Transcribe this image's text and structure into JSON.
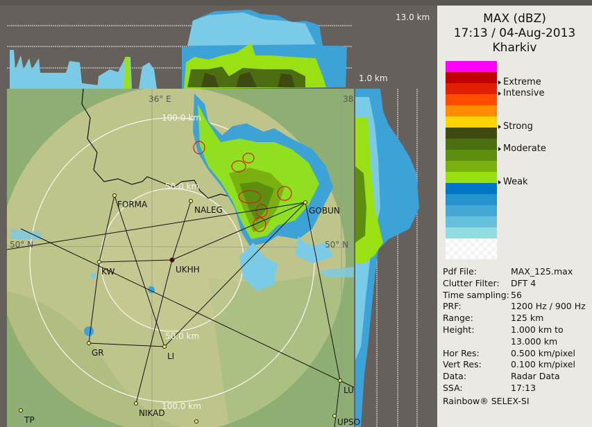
{
  "map": {
    "height_labels": {
      "top": "13.0 km",
      "bottom": "1.0 km"
    },
    "range_labels": [
      "100.0 km",
      "50.0 km",
      "50.0 km",
      "100.0 km"
    ],
    "grid_labels": {
      "lon_36": "36° E",
      "lon_38": "38",
      "lat_50_left": "50° N",
      "lat_50_right": "50° N"
    },
    "stations": [
      {
        "name": "FORMA"
      },
      {
        "name": "NALEG"
      },
      {
        "name": "GOBUN"
      },
      {
        "name": "KW"
      },
      {
        "name": "UKHH"
      },
      {
        "name": "GR"
      },
      {
        "name": "LI"
      },
      {
        "name": "NIKAD"
      },
      {
        "name": "LUSIG"
      },
      {
        "name": "UPSO"
      },
      {
        "name": "TP"
      }
    ]
  },
  "panel": {
    "title": "MAX (dBZ)",
    "datetime": "17:13 / 04-Aug-2013",
    "location": "Kharkiv",
    "legend_colors": [
      "#ff00ff",
      "#c00000",
      "#e02000",
      "#ff4a00",
      "#ff8c00",
      "#ffd400",
      "#3f4a10",
      "#4a6e10",
      "#5e8e10",
      "#7ab010",
      "#98e010",
      "#0077c4",
      "#2492cc",
      "#44a8d4",
      "#66c0dc",
      "#90dce0"
    ],
    "levels": [
      {
        "label": "Extreme"
      },
      {
        "label": "Intensive"
      },
      {
        "label": "Strong"
      },
      {
        "label": "Moderate"
      },
      {
        "label": "Weak"
      }
    ],
    "info": [
      {
        "key": "Pdf File:",
        "value": "MAX_125.max"
      },
      {
        "key": "Clutter Filter:",
        "value": "DFT 4"
      },
      {
        "key": "Time sampling:",
        "value": "56"
      },
      {
        "key": "PRF:",
        "value": "1200 Hz / 900 Hz"
      },
      {
        "key": "Range:",
        "value": "125 km"
      },
      {
        "key": "Height:",
        "value": "1.000 km to"
      },
      {
        "key": "",
        "value": "13.000 km"
      },
      {
        "key": "Hor Res:",
        "value": "0.500 km/pixel"
      },
      {
        "key": "Vert Res:",
        "value": "0.100 km/pixel"
      },
      {
        "key": "Data:",
        "value": "Radar Data"
      },
      {
        "key": "SSA:",
        "value": "17:13"
      }
    ],
    "brand": "Rainbow® SELEX-SI"
  }
}
